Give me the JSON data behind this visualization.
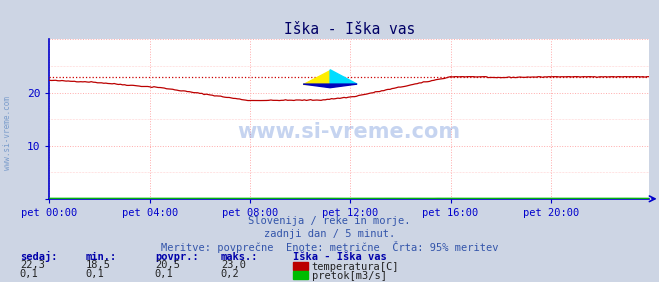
{
  "title": "Iška - Iška vas",
  "bg_color": "#cdd5e4",
  "plot_bg_color": "#ffffff",
  "grid_color": "#ffaaaa",
  "axis_color": "#0000cc",
  "text_color": "#000066",
  "xlabel_color": "#666666",
  "xlim": [
    0,
    287
  ],
  "ylim": [
    0,
    30
  ],
  "yticks": [
    0,
    10,
    20
  ],
  "xtick_labels": [
    "pet 00:00",
    "pet 04:00",
    "pet 08:00",
    "pet 12:00",
    "pet 16:00",
    "pet 20:00"
  ],
  "xtick_positions": [
    0,
    48,
    96,
    144,
    192,
    240
  ],
  "temp_color": "#bb0000",
  "flow_color": "#00bb00",
  "max_line_color": "#cc0000",
  "max_value": 23.0,
  "temp_min": 18.5,
  "temp_avg": 20.5,
  "temp_max": 23.0,
  "temp_now": 22.3,
  "flow_min": 0.1,
  "flow_avg": 0.1,
  "flow_max": 0.2,
  "flow_now": 0.1,
  "subtitle1": "Slovenija / reke in morje.",
  "subtitle2": "zadnji dan / 5 minut.",
  "subtitle3": "Meritve: povprečne  Enote: metrične  Črta: 95% meritev",
  "legend_title": "Iška - Iška vas",
  "watermark": "www.si-vreme.com",
  "label_sedaj": "sedaj:",
  "label_min": "min.:",
  "label_povpr": "povpr.:",
  "label_maks": "maks.:",
  "label_temp": "temperatura[C]",
  "label_flow": "pretok[m3/s]",
  "sivreme_left": "www.si-vreme.com"
}
